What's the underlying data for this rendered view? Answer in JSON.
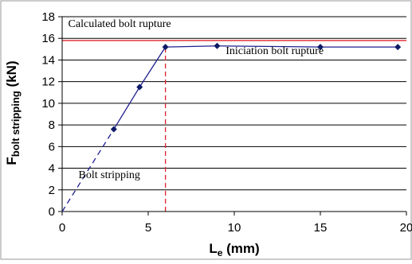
{
  "chart_data": {
    "type": "line",
    "x_axis": {
      "label_main": "L",
      "label_sub": "e",
      "label_unit": " (mm)",
      "range": [
        0,
        20
      ],
      "ticks": [
        "0",
        "5",
        "10",
        "15",
        "20"
      ]
    },
    "y_axis": {
      "label_main": "F",
      "label_sub": "bolt stripping",
      "label_unit": " (kN)",
      "range": [
        0,
        18
      ],
      "ticks": [
        "0",
        "2",
        "4",
        "6",
        "8",
        "10",
        "12",
        "14",
        "16",
        "18"
      ]
    },
    "grid": "horizontal",
    "series": [
      {
        "x": [
          0,
          3,
          4.5,
          6,
          9,
          15,
          19.5
        ],
        "y": [
          0,
          7.6,
          11.5,
          15.2,
          15.3,
          15.2,
          15.2
        ],
        "color": "#1f1f8f",
        "marker": "diamond",
        "dashed_segment_x": [
          0,
          3
        ]
      }
    ],
    "reference_lines": [
      {
        "type": "horizontal",
        "value": 15.8,
        "color": "#e0202b",
        "style": "solid"
      },
      {
        "type": "vertical",
        "value": 6,
        "color": "#e0202b",
        "style": "dashed"
      }
    ],
    "annotations": [
      {
        "text": "Calculated bolt rupture",
        "x": 0.35,
        "y": 17.05
      },
      {
        "text": "Iniciation bolt rupture",
        "x": 9.5,
        "y": 14.55
      },
      {
        "text": "Bolt stripping",
        "x": 0.95,
        "y": 3.1
      }
    ]
  }
}
